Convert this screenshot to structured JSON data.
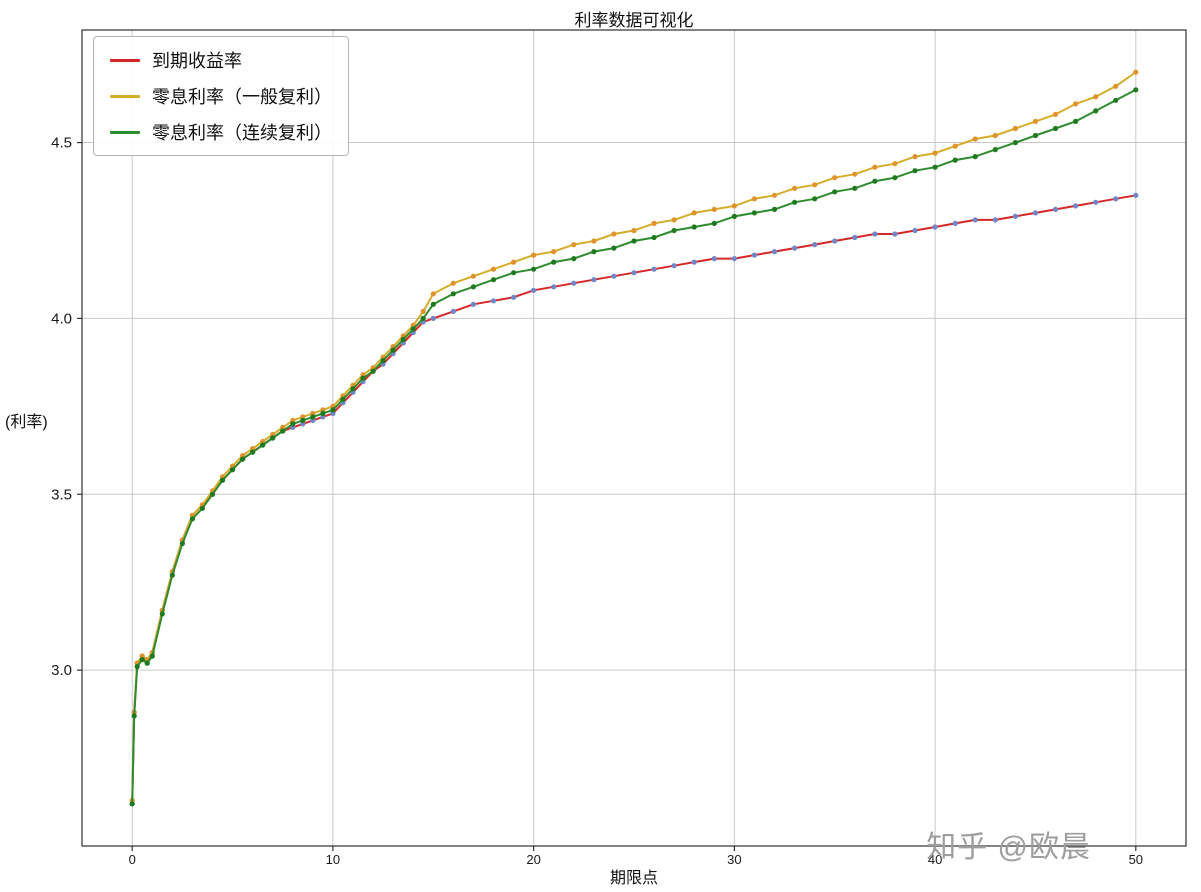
{
  "watermark": "知乎 @欧晨",
  "chart_data": {
    "type": "line",
    "title": "利率数据可视化",
    "xlabel": "期限点",
    "ylabel": "(利率)",
    "xlim": [
      -2.5,
      52.5
    ],
    "ylim": [
      2.5,
      4.82
    ],
    "xticks": [
      0,
      10,
      20,
      30,
      40,
      50
    ],
    "yticks": [
      3.0,
      3.5,
      4.0,
      4.5
    ],
    "grid": true,
    "legend_position": "upper left",
    "x": [
      0,
      0.1,
      0.25,
      0.5,
      0.75,
      1,
      1.5,
      2,
      2.5,
      3,
      3.5,
      4,
      4.5,
      5,
      5.5,
      6,
      6.5,
      7,
      7.5,
      8,
      8.5,
      9,
      9.5,
      10,
      10.5,
      11,
      11.5,
      12,
      12.5,
      13,
      13.5,
      14,
      14.5,
      15,
      16,
      17,
      18,
      19,
      20,
      21,
      22,
      23,
      24,
      25,
      26,
      27,
      28,
      29,
      30,
      31,
      32,
      33,
      34,
      35,
      36,
      37,
      38,
      39,
      40,
      41,
      42,
      43,
      44,
      45,
      46,
      47,
      48,
      49,
      50
    ],
    "series": [
      {
        "name": "到期收益率",
        "line_color": "#d62728",
        "marker_color": "#6f86c9",
        "values": [
          2.62,
          2.88,
          3.02,
          3.04,
          3.02,
          3.05,
          3.17,
          3.28,
          3.37,
          3.44,
          3.47,
          3.5,
          3.54,
          3.57,
          3.6,
          3.62,
          3.64,
          3.66,
          3.68,
          3.69,
          3.7,
          3.71,
          3.72,
          3.73,
          3.76,
          3.79,
          3.82,
          3.85,
          3.87,
          3.9,
          3.93,
          3.96,
          3.99,
          4.0,
          4.02,
          4.04,
          4.05,
          4.06,
          4.08,
          4.09,
          4.1,
          4.11,
          4.12,
          4.13,
          4.14,
          4.15,
          4.16,
          4.17,
          4.17,
          4.18,
          4.19,
          4.2,
          4.21,
          4.22,
          4.23,
          4.24,
          4.24,
          4.25,
          4.26,
          4.27,
          4.28,
          4.28,
          4.29,
          4.3,
          4.31,
          4.32,
          4.33,
          4.34,
          4.35
        ]
      },
      {
        "name": "零息利率（一般复利）",
        "line_color": "#d4ad2b",
        "marker_color": "#e0922d",
        "values": [
          2.63,
          2.88,
          3.02,
          3.04,
          3.03,
          3.05,
          3.17,
          3.28,
          3.37,
          3.44,
          3.47,
          3.51,
          3.55,
          3.58,
          3.61,
          3.63,
          3.65,
          3.67,
          3.69,
          3.71,
          3.72,
          3.73,
          3.74,
          3.75,
          3.78,
          3.81,
          3.84,
          3.86,
          3.89,
          3.92,
          3.95,
          3.98,
          4.02,
          4.07,
          4.1,
          4.12,
          4.14,
          4.16,
          4.18,
          4.19,
          4.21,
          4.22,
          4.24,
          4.25,
          4.27,
          4.28,
          4.3,
          4.31,
          4.32,
          4.34,
          4.35,
          4.37,
          4.38,
          4.4,
          4.41,
          4.43,
          4.44,
          4.46,
          4.47,
          4.49,
          4.51,
          4.52,
          4.54,
          4.56,
          4.58,
          4.61,
          4.63,
          4.66,
          4.7
        ]
      },
      {
        "name": "零息利率（连续复利）",
        "line_color": "#2e8b2e",
        "marker_color": "#1f7a1f",
        "values": [
          2.62,
          2.87,
          3.01,
          3.03,
          3.02,
          3.04,
          3.16,
          3.27,
          3.36,
          3.43,
          3.46,
          3.5,
          3.54,
          3.57,
          3.6,
          3.62,
          3.64,
          3.66,
          3.68,
          3.7,
          3.71,
          3.72,
          3.73,
          3.74,
          3.77,
          3.8,
          3.83,
          3.85,
          3.88,
          3.91,
          3.94,
          3.97,
          4.0,
          4.04,
          4.07,
          4.09,
          4.11,
          4.13,
          4.14,
          4.16,
          4.17,
          4.19,
          4.2,
          4.22,
          4.23,
          4.25,
          4.26,
          4.27,
          4.29,
          4.3,
          4.31,
          4.33,
          4.34,
          4.36,
          4.37,
          4.39,
          4.4,
          4.42,
          4.43,
          4.45,
          4.46,
          4.48,
          4.5,
          4.52,
          4.54,
          4.56,
          4.59,
          4.62,
          4.65
        ]
      }
    ]
  }
}
